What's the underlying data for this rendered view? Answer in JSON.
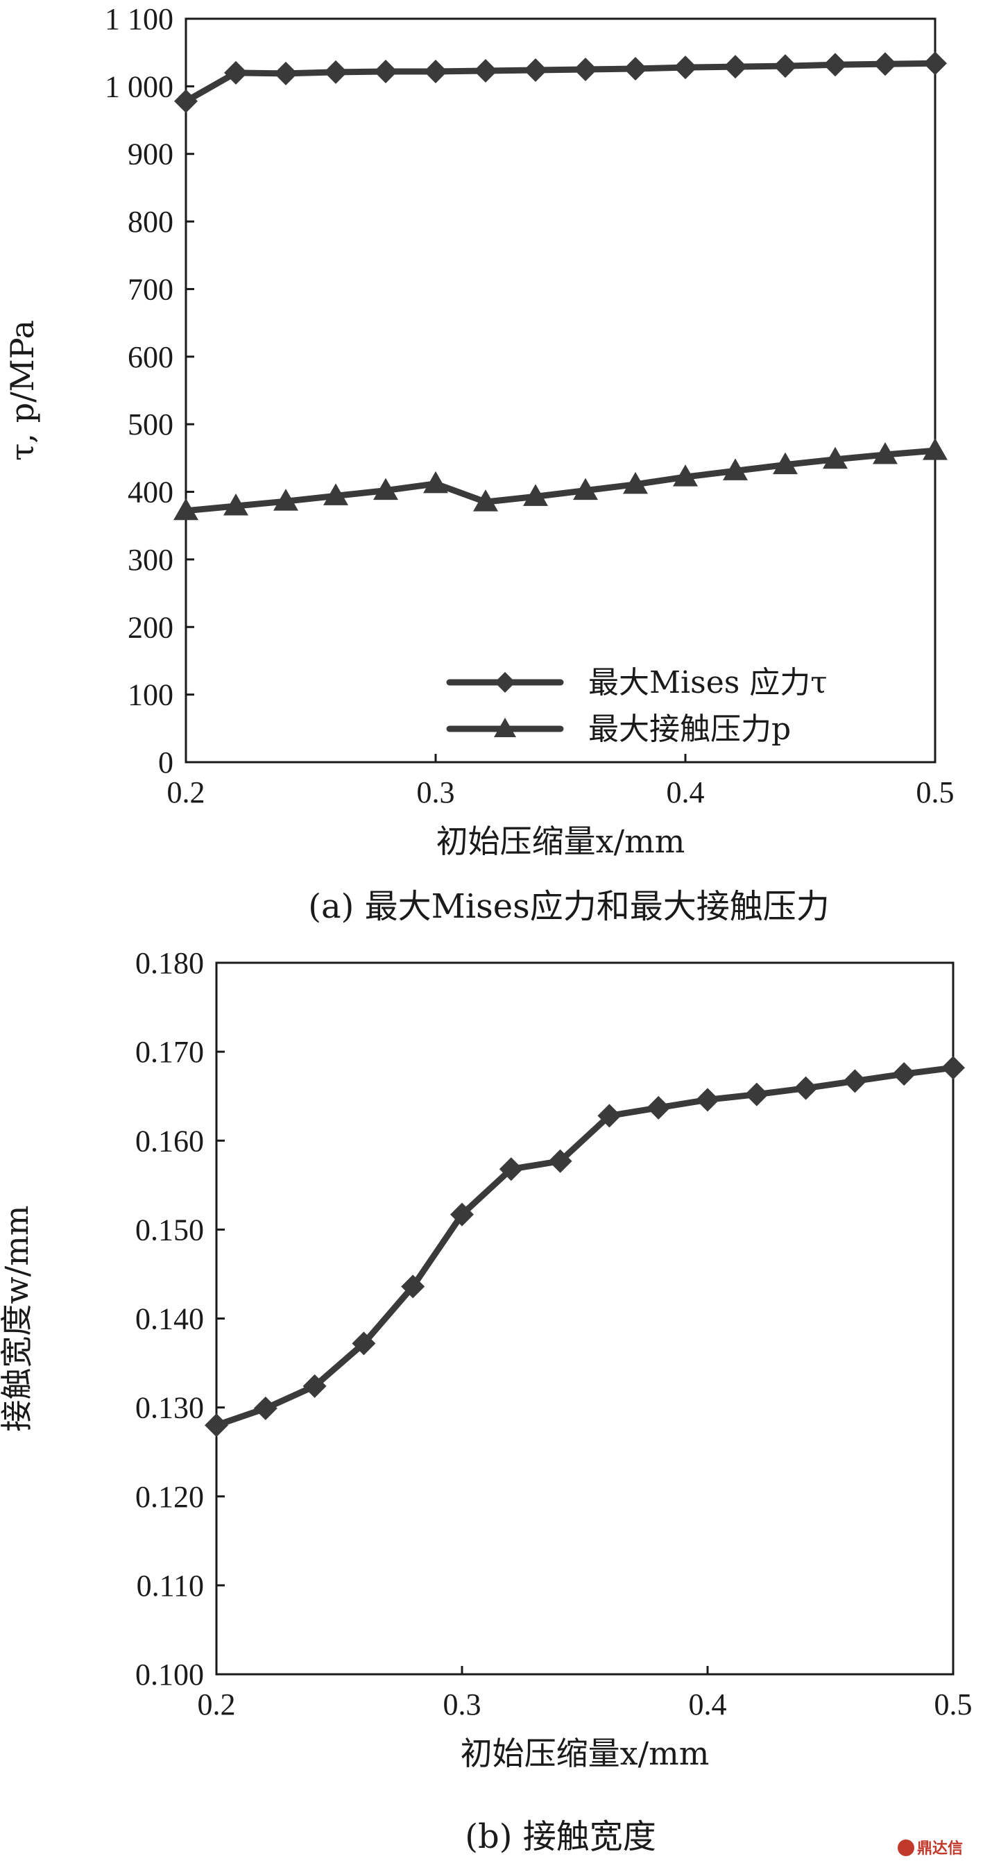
{
  "chart_data": [
    {
      "type": "line",
      "caption": "(a) 最大Mises应力和最大接触压力",
      "xlabel": "初始压缩量x/mm",
      "ylabel": "τ, p/MPa",
      "xlim": [
        0.2,
        0.5
      ],
      "ylim": [
        0,
        1100
      ],
      "xticks": [
        0.2,
        0.3,
        0.4,
        0.5
      ],
      "xtick_labels": [
        "0.2",
        "0.3",
        "0.4",
        "0.5"
      ],
      "yticks": [
        0,
        100,
        200,
        300,
        400,
        500,
        600,
        700,
        800,
        900,
        1000,
        1100
      ],
      "ytick_labels": [
        "0",
        "100",
        "200",
        "300",
        "400",
        "500",
        "600",
        "700",
        "800",
        "900",
        "1 000",
        "1 100"
      ],
      "grid": false,
      "legend_position": "bottom-right",
      "x": [
        0.2,
        0.22,
        0.24,
        0.26,
        0.28,
        0.3,
        0.32,
        0.34,
        0.36,
        0.38,
        0.4,
        0.42,
        0.44,
        0.46,
        0.48,
        0.5
      ],
      "series": [
        {
          "name": "最大Mises 应力τ",
          "marker": "diamond",
          "color": "#3a3a3a",
          "values": [
            978,
            1020,
            1019,
            1021,
            1022,
            1022,
            1023,
            1024,
            1025,
            1026,
            1028,
            1029,
            1030,
            1032,
            1033,
            1034
          ]
        },
        {
          "name": "最大接触压力p",
          "marker": "triangle",
          "color": "#3a3a3a",
          "values": [
            372,
            379,
            386,
            394,
            402,
            412,
            385,
            393,
            402,
            411,
            422,
            431,
            440,
            448,
            455,
            461
          ]
        }
      ]
    },
    {
      "type": "line",
      "caption": "(b) 接触宽度",
      "xlabel": "初始压缩量x/mm",
      "ylabel": "接触宽度w/mm",
      "xlim": [
        0.2,
        0.5
      ],
      "ylim": [
        0.1,
        0.18
      ],
      "xticks": [
        0.2,
        0.3,
        0.4,
        0.5
      ],
      "xtick_labels": [
        "0.2",
        "0.3",
        "0.4",
        "0.5"
      ],
      "yticks": [
        0.1,
        0.11,
        0.12,
        0.13,
        0.14,
        0.15,
        0.16,
        0.17,
        0.18
      ],
      "ytick_labels": [
        "0.100",
        "0.110",
        "0.120",
        "0.130",
        "0.140",
        "0.150",
        "0.160",
        "0.170",
        "0.180"
      ],
      "grid": false,
      "x": [
        0.2,
        0.22,
        0.24,
        0.26,
        0.28,
        0.3,
        0.32,
        0.34,
        0.36,
        0.38,
        0.4,
        0.42,
        0.44,
        0.46,
        0.48,
        0.5
      ],
      "series": [
        {
          "marker": "diamond",
          "color": "#3a3a3a",
          "values": [
            0.128,
            0.1299,
            0.1324,
            0.1372,
            0.1436,
            0.1517,
            0.1568,
            0.1577,
            0.1628,
            0.1637,
            0.1646,
            0.1652,
            0.1659,
            0.1667,
            0.1675,
            0.1682
          ]
        }
      ]
    }
  ],
  "watermark": "鼎达信"
}
